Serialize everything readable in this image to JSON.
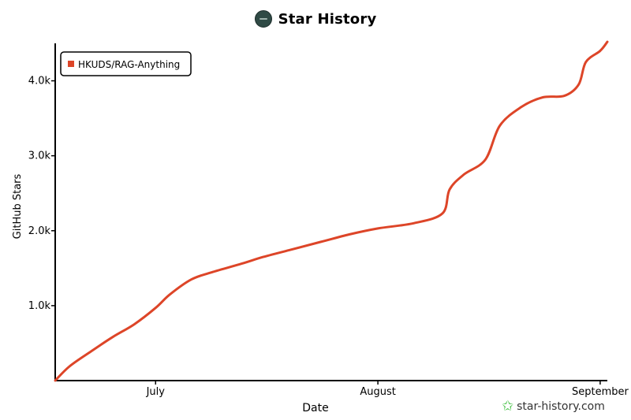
{
  "chart_data": {
    "type": "line",
    "title": "Star History",
    "xlabel": "Date",
    "ylabel": "GitHub Stars",
    "x_ticks": [
      "July",
      "August",
      "September"
    ],
    "y_ticks": [
      "1.0k",
      "2.0k",
      "3.0k",
      "4.0k"
    ],
    "ylim": [
      0,
      4500
    ],
    "legend": {
      "position": "top-left"
    },
    "series": [
      {
        "name": "HKUDS/RAG-Anything",
        "color": "#dd4528",
        "points": [
          {
            "x": "2025-06-17",
            "y": 0
          },
          {
            "x": "2025-06-19",
            "y": 190
          },
          {
            "x": "2025-06-22",
            "y": 390
          },
          {
            "x": "2025-06-25",
            "y": 580
          },
          {
            "x": "2025-06-28",
            "y": 750
          },
          {
            "x": "2025-07-01",
            "y": 970
          },
          {
            "x": "2025-07-03",
            "y": 1150
          },
          {
            "x": "2025-07-06",
            "y": 1350
          },
          {
            "x": "2025-07-09",
            "y": 1450
          },
          {
            "x": "2025-07-13",
            "y": 1560
          },
          {
            "x": "2025-07-16",
            "y": 1650
          },
          {
            "x": "2025-07-20",
            "y": 1750
          },
          {
            "x": "2025-07-24",
            "y": 1850
          },
          {
            "x": "2025-07-28",
            "y": 1950
          },
          {
            "x": "2025-08-01",
            "y": 2030
          },
          {
            "x": "2025-08-06",
            "y": 2100
          },
          {
            "x": "2025-08-10",
            "y": 2230
          },
          {
            "x": "2025-08-11",
            "y": 2550
          },
          {
            "x": "2025-08-13",
            "y": 2750
          },
          {
            "x": "2025-08-16",
            "y": 2950
          },
          {
            "x": "2025-08-18",
            "y": 3400
          },
          {
            "x": "2025-08-21",
            "y": 3650
          },
          {
            "x": "2025-08-24",
            "y": 3780
          },
          {
            "x": "2025-08-27",
            "y": 3800
          },
          {
            "x": "2025-08-29",
            "y": 3950
          },
          {
            "x": "2025-08-30",
            "y": 4250
          },
          {
            "x": "2025-09-01",
            "y": 4400
          },
          {
            "x": "2025-09-02",
            "y": 4520
          }
        ]
      }
    ]
  },
  "watermark": "star-history.com",
  "icons": {
    "logo": "star-history-logo-icon",
    "watermark": "star-icon"
  }
}
